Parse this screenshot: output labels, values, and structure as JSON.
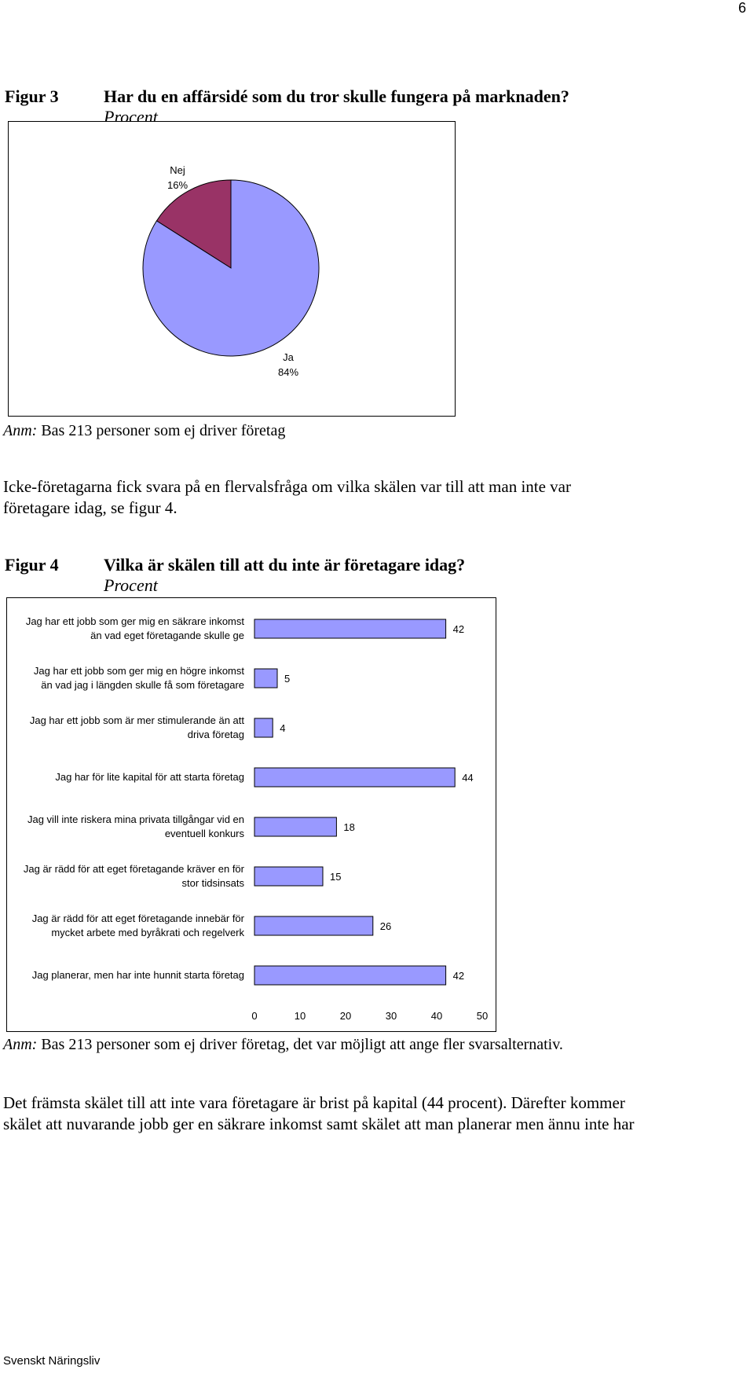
{
  "page_number": "6",
  "figure3": {
    "label": "Figur 3",
    "title": "Har du en affärsidé som du tror skulle fungera på marknaden?",
    "subtitle": "Procent",
    "note_prefix": "Anm:",
    "note_text": " Bas 213 personer som ej driver företag"
  },
  "paragraph1": "Icke-företagarna fick svara på en flervalsfråga om vilka skälen var till att man inte var företagare idag, se figur 4.",
  "figure4": {
    "label": "Figur 4",
    "title": "Vilka är skälen till att du inte är företagare idag?",
    "subtitle": "Procent",
    "note_prefix": "Anm:",
    "note_text": " Bas 213 personer som ej driver företag, det var möjligt att ange fler svarsalternativ."
  },
  "paragraph2": "Det främsta skälet till att inte vara företagare är brist på kapital (44 procent). Därefter kommer skälet att nuvarande jobb ger en säkrare inkomst samt skälet att man planerar men ännu inte har",
  "footer": "Svenskt Näringsliv",
  "chart_data": [
    {
      "type": "pie",
      "slices": [
        {
          "label": "Nej",
          "value": 16,
          "value_label": "16%",
          "color": "#993366"
        },
        {
          "label": "Ja",
          "value": 84,
          "value_label": "84%",
          "color": "#9999ff"
        }
      ]
    },
    {
      "type": "bar",
      "orientation": "horizontal",
      "color": "#9999ff",
      "categories": [
        [
          "Jag har ett jobb som ger mig en säkrare inkomst",
          "än vad eget företagande skulle ge"
        ],
        [
          "Jag har ett jobb som ger mig en högre inkomst",
          "än vad jag i längden skulle få som företagare"
        ],
        [
          "Jag har ett jobb som är mer stimulerande än att",
          "driva företag"
        ],
        [
          "Jag har för lite kapital för att starta företag"
        ],
        [
          "Jag vill inte riskera mina privata tillgångar vid en",
          "eventuell konkurs"
        ],
        [
          "Jag är rädd för att eget företagande kräver en för",
          "stor tidsinsats"
        ],
        [
          "Jag är rädd för att eget företagande innebär för",
          "mycket arbete med byråkrati och regelverk"
        ],
        [
          "Jag planerar, men har inte hunnit starta företag"
        ]
      ],
      "values": [
        42,
        5,
        4,
        44,
        18,
        15,
        26,
        42
      ],
      "xlim": [
        0,
        50
      ],
      "xticks": [
        0,
        10,
        20,
        30,
        40,
        50
      ]
    }
  ]
}
